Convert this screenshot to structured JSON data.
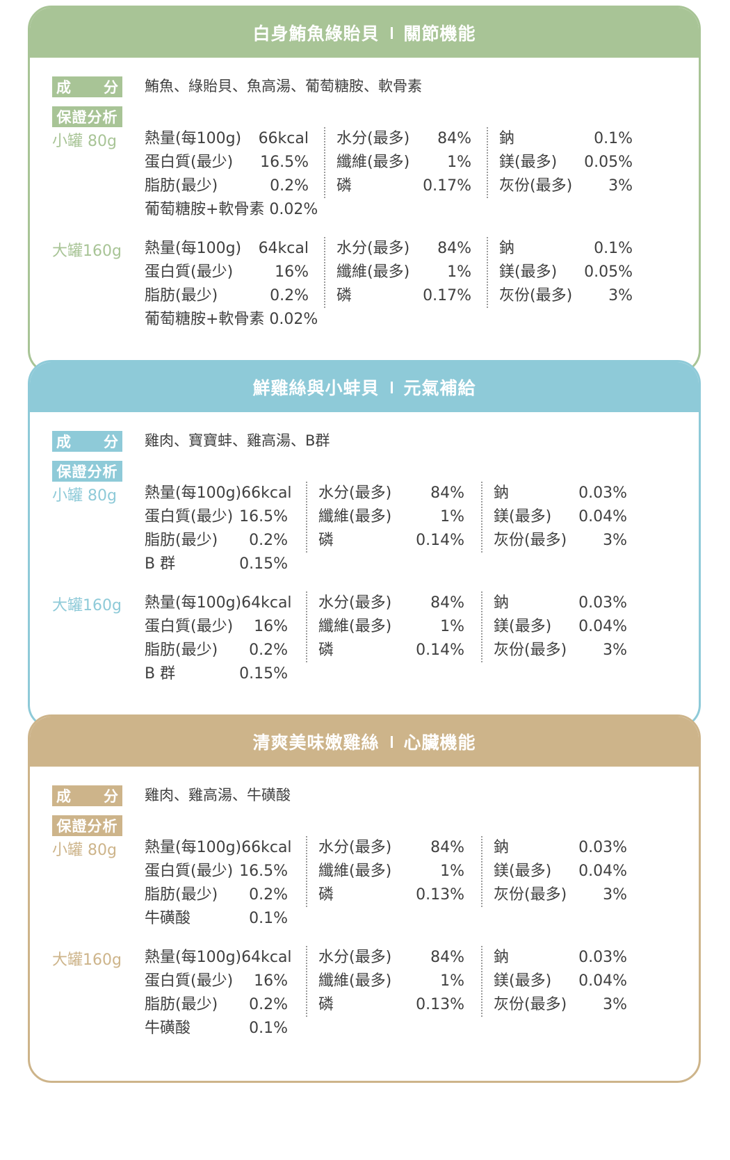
{
  "cards": [
    {
      "title": "白身鮪魚綠貽貝",
      "subtitle": "關節機能",
      "accent": "#a8c496",
      "ingredient_label": [
        "成",
        "分"
      ],
      "ingredients": "鮪魚、綠貽貝、魚高湯、葡萄糖胺、軟骨素",
      "analysis_label": "保證分析",
      "sizes": [
        {
          "size": "小罐 80g",
          "col1": [
            [
              "熱量(每100g)",
              "66kcal"
            ],
            [
              "蛋白質(最少)",
              "16.5%"
            ],
            [
              "脂肪(最少)",
              "0.2%"
            ],
            [
              "葡萄糖胺+軟骨素 0.02%",
              ""
            ]
          ],
          "col2": [
            [
              "水分(最多)",
              "84%"
            ],
            [
              "纖維(最多)",
              "1%"
            ],
            [
              "磷",
              "0.17%"
            ]
          ],
          "col3": [
            [
              "鈉",
              "0.1%"
            ],
            [
              "鎂(最多)",
              "0.05%"
            ],
            [
              "灰份(最多)",
              "3%"
            ]
          ]
        },
        {
          "size": "大罐160g",
          "col1": [
            [
              "熱量(每100g)",
              "64kcal"
            ],
            [
              "蛋白質(最少)",
              "16%"
            ],
            [
              "脂肪(最少)",
              "0.2%"
            ],
            [
              "葡萄糖胺+軟骨素 0.02%",
              ""
            ]
          ],
          "col2": [
            [
              "水分(最多)",
              "84%"
            ],
            [
              "纖維(最多)",
              "1%"
            ],
            [
              "磷",
              "0.17%"
            ]
          ],
          "col3": [
            [
              "鈉",
              "0.1%"
            ],
            [
              "鎂(最多)",
              "0.05%"
            ],
            [
              "灰份(最多)",
              "3%"
            ]
          ]
        }
      ]
    },
    {
      "title": "鮮雞絲與小蚌貝",
      "subtitle": "元氣補給",
      "accent": "#8ecad8",
      "ingredient_label": [
        "成",
        "分"
      ],
      "ingredients": "雞肉、寶寶蚌、雞高湯、B群",
      "analysis_label": "保證分析",
      "sizes": [
        {
          "size": "小罐 80g",
          "col1": [
            [
              "熱量(每100g)",
              "66kcal"
            ],
            [
              "蛋白質(最少)",
              "16.5%"
            ],
            [
              "脂肪(最少)",
              "0.2%"
            ],
            [
              "B 群",
              "0.15%"
            ]
          ],
          "col2": [
            [
              "水分(最多)",
              "84%"
            ],
            [
              "纖維(最多)",
              "1%"
            ],
            [
              "磷",
              "0.14%"
            ]
          ],
          "col3": [
            [
              "鈉",
              "0.03%"
            ],
            [
              "鎂(最多)",
              "0.04%"
            ],
            [
              "灰份(最多)",
              "3%"
            ]
          ]
        },
        {
          "size": "大罐160g",
          "col1": [
            [
              "熱量(每100g)",
              "64kcal"
            ],
            [
              "蛋白質(最少)",
              "16%"
            ],
            [
              "脂肪(最少)",
              "0.2%"
            ],
            [
              "B 群",
              "0.15%"
            ]
          ],
          "col2": [
            [
              "水分(最多)",
              "84%"
            ],
            [
              "纖維(最多)",
              "1%"
            ],
            [
              "磷",
              "0.14%"
            ]
          ],
          "col3": [
            [
              "鈉",
              "0.03%"
            ],
            [
              "鎂(最多)",
              "0.04%"
            ],
            [
              "灰份(最多)",
              "3%"
            ]
          ]
        }
      ]
    },
    {
      "title": "清爽美味嫩雞絲",
      "subtitle": "心臟機能",
      "accent": "#cdb48a",
      "ingredient_label": [
        "成",
        "分"
      ],
      "ingredients": "雞肉、雞高湯、牛磺酸",
      "analysis_label": "保證分析",
      "sizes": [
        {
          "size": "小罐 80g",
          "col1": [
            [
              "熱量(每100g)",
              "66kcal"
            ],
            [
              "蛋白質(最少)",
              "16.5%"
            ],
            [
              "脂肪(最少)",
              "0.2%"
            ],
            [
              "牛磺酸",
              "0.1%"
            ]
          ],
          "col2": [
            [
              "水分(最多)",
              "84%"
            ],
            [
              "纖維(最多)",
              "1%"
            ],
            [
              "磷",
              "0.13%"
            ]
          ],
          "col3": [
            [
              "鈉",
              "0.03%"
            ],
            [
              "鎂(最多)",
              "0.04%"
            ],
            [
              "灰份(最多)",
              "3%"
            ]
          ]
        },
        {
          "size": "大罐160g",
          "col1": [
            [
              "熱量(每100g)",
              "64kcal"
            ],
            [
              "蛋白質(最少)",
              "16%"
            ],
            [
              "脂肪(最少)",
              "0.2%"
            ],
            [
              "牛磺酸",
              "0.1%"
            ]
          ],
          "col2": [
            [
              "水分(最多)",
              "84%"
            ],
            [
              "纖維(最多)",
              "1%"
            ],
            [
              "磷",
              "0.13%"
            ]
          ],
          "col3": [
            [
              "鈉",
              "0.03%"
            ],
            [
              "鎂(最多)",
              "0.04%"
            ],
            [
              "灰份(最多)",
              "3%"
            ]
          ]
        }
      ]
    }
  ]
}
